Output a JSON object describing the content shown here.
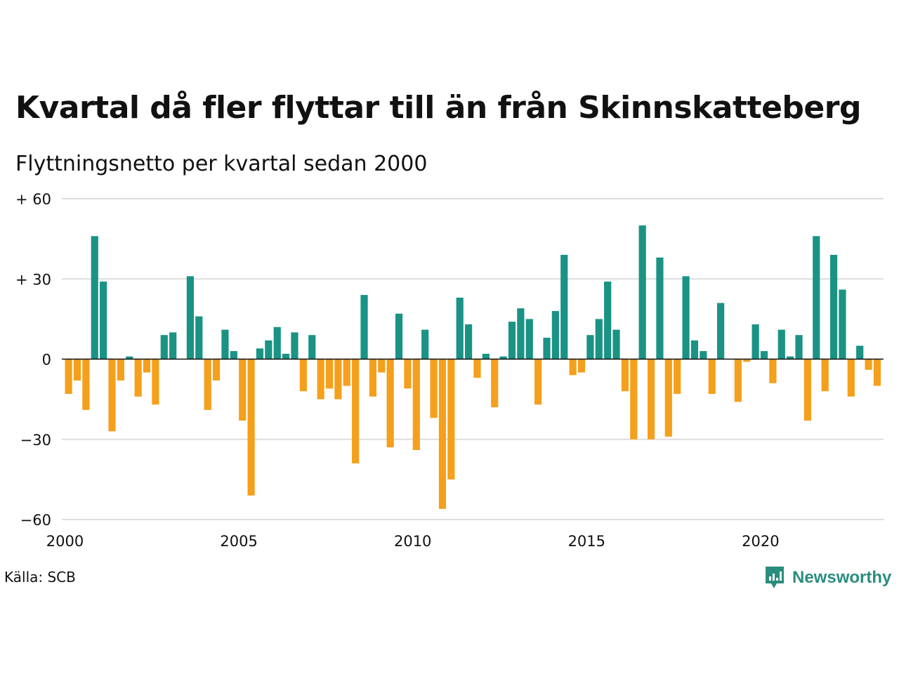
{
  "title": "Kvartal då fler flyttar till än från Skinnskatteberg",
  "subtitle": "Flyttningsnetto per kvartal sedan 2000",
  "source": "Källa: SCB",
  "brand": "Newsworthy",
  "colors": {
    "positive": "#1a9384",
    "negative": "#f5a01c",
    "grid": "#dddddd",
    "zero_line": "#111111",
    "brand": "#2a8d7f"
  },
  "chart_data": {
    "type": "bar",
    "title": "Kvartal då fler flyttar till än från Skinnskatteberg",
    "subtitle": "Flyttningsnetto per kvartal sedan 2000",
    "ylim": [
      -60,
      60
    ],
    "y_ticks": [
      {
        "value": 60,
        "label": "+ 60"
      },
      {
        "value": 30,
        "label": "+ 30"
      },
      {
        "value": 0,
        "label": "0"
      },
      {
        "value": -30,
        "label": "−30"
      },
      {
        "value": -60,
        "label": "−60"
      }
    ],
    "x_ticks": [
      {
        "year": 2000,
        "label": "2000"
      },
      {
        "year": 2005,
        "label": "2005"
      },
      {
        "year": 2010,
        "label": "2010"
      },
      {
        "year": 2015,
        "label": "2015"
      },
      {
        "year": 2020,
        "label": "2020"
      }
    ],
    "grid": true,
    "start_year": 2000,
    "start_quarter": 1,
    "values": [
      -13,
      -8,
      -19,
      46,
      29,
      -27,
      -8,
      1,
      -14,
      -5,
      -17,
      9,
      10,
      0,
      31,
      16,
      -19,
      -8,
      11,
      3,
      -23,
      -51,
      4,
      7,
      12,
      2,
      10,
      -12,
      9,
      -15,
      -11,
      -15,
      -10,
      -39,
      24,
      -14,
      -5,
      -33,
      17,
      -11,
      -34,
      11,
      -22,
      -56,
      -45,
      23,
      13,
      -7,
      2,
      -18,
      1,
      14,
      19,
      15,
      -17,
      8,
      18,
      39,
      -6,
      -5,
      9,
      15,
      29,
      11,
      -12,
      -30,
      50,
      -30,
      38,
      -29,
      -13,
      31,
      7,
      3,
      -13,
      21,
      0,
      -16,
      -1,
      13,
      3,
      -9,
      11,
      1,
      9,
      -23,
      46,
      -12,
      39,
      26,
      -14,
      5,
      -4,
      -10
    ]
  }
}
